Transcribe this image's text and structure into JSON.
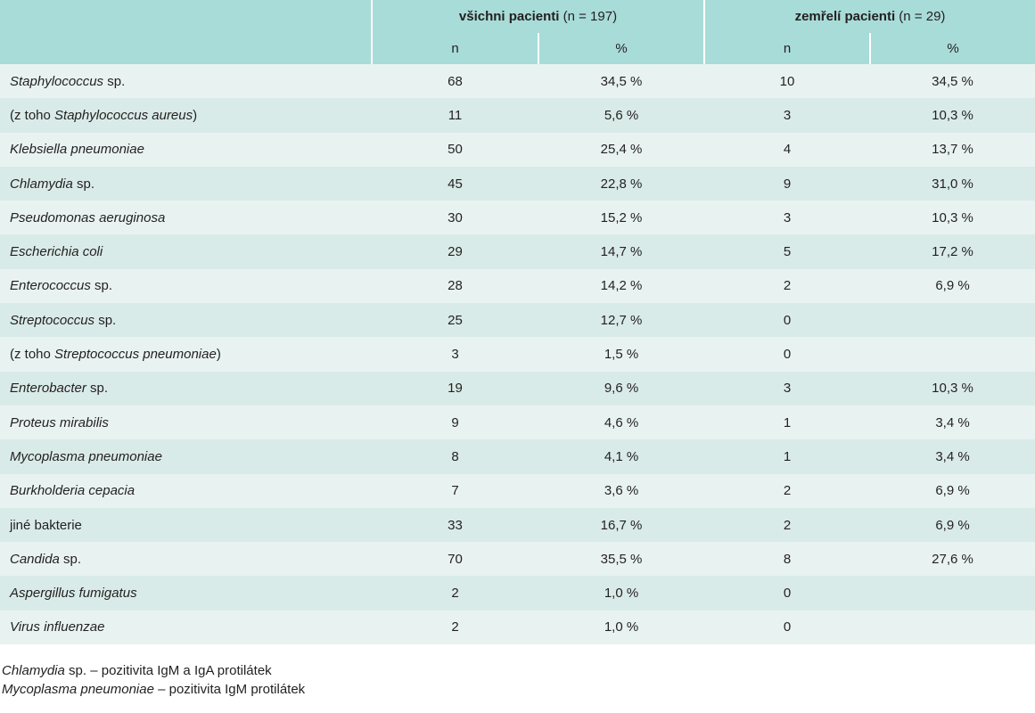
{
  "header": {
    "group1": {
      "label": "všichni pacienti",
      "sub": "(n = 197)"
    },
    "group2": {
      "label": "zemřelí pacienti",
      "sub": "(n = 29)"
    },
    "units": [
      "n",
      "%",
      "n",
      "%"
    ]
  },
  "rows": [
    {
      "pre": "",
      "italic": "Staphylococcus",
      "post": " sp.",
      "n1": "68",
      "p1": "34,5 %",
      "n2": "10",
      "p2": "34,5 %"
    },
    {
      "pre": "(z toho ",
      "italic": "Staphylococcus aureus",
      "post": ")",
      "n1": "11",
      "p1": "5,6 %",
      "n2": "3",
      "p2": "10,3 %"
    },
    {
      "pre": "",
      "italic": "Klebsiella pneumoniae",
      "post": "",
      "n1": "50",
      "p1": "25,4 %",
      "n2": "4",
      "p2": "13,7 %"
    },
    {
      "pre": "",
      "italic": "Chlamydia",
      "post": " sp.",
      "n1": "45",
      "p1": "22,8 %",
      "n2": "9",
      "p2": "31,0 %"
    },
    {
      "pre": "",
      "italic": "Pseudomonas aeruginosa",
      "post": "",
      "n1": "30",
      "p1": "15,2 %",
      "n2": "3",
      "p2": "10,3 %"
    },
    {
      "pre": "",
      "italic": "Escherichia coli",
      "post": "",
      "n1": "29",
      "p1": "14,7 %",
      "n2": "5",
      "p2": "17,2 %"
    },
    {
      "pre": "",
      "italic": "Enterococcus",
      "post": " sp.",
      "n1": "28",
      "p1": "14,2 %",
      "n2": "2",
      "p2": "6,9 %"
    },
    {
      "pre": "",
      "italic": "Streptococcus",
      "post": " sp.",
      "n1": "25",
      "p1": "12,7 %",
      "n2": "0",
      "p2": ""
    },
    {
      "pre": "(z toho ",
      "italic": "Streptococcus pneumoniae",
      "post": ")",
      "n1": "3",
      "p1": "1,5 %",
      "n2": "0",
      "p2": ""
    },
    {
      "pre": "",
      "italic": "Enterobacter",
      "post": " sp.",
      "n1": "19",
      "p1": "9,6 %",
      "n2": "3",
      "p2": "10,3 %"
    },
    {
      "pre": "",
      "italic": "Proteus mirabilis",
      "post": "",
      "n1": "9",
      "p1": "4,6 %",
      "n2": "1",
      "p2": "3,4 %"
    },
    {
      "pre": "",
      "italic": "Mycoplasma pneumoniae",
      "post": "",
      "n1": "8",
      "p1": "4,1 %",
      "n2": "1",
      "p2": "3,4 %"
    },
    {
      "pre": "",
      "italic": "Burkholderia cepacia",
      "post": "",
      "n1": "7",
      "p1": "3,6 %",
      "n2": "2",
      "p2": "6,9 %"
    },
    {
      "pre": "jiné bakterie",
      "italic": "",
      "post": "",
      "n1": "33",
      "p1": "16,7 %",
      "n2": "2",
      "p2": "6,9 %"
    },
    {
      "pre": "",
      "italic": "Candida",
      "post": " sp.",
      "n1": "70",
      "p1": "35,5 %",
      "n2": "8",
      "p2": "27,6 %"
    },
    {
      "pre": "",
      "italic": "Aspergillus fumigatus",
      "post": "",
      "n1": "2",
      "p1": "1,0 %",
      "n2": "0",
      "p2": ""
    },
    {
      "pre": "",
      "italic": "Virus influenzae",
      "post": "",
      "n1": "2",
      "p1": "1,0 %",
      "n2": "0",
      "p2": ""
    }
  ],
  "footnotes": [
    {
      "italic": "Chlamydia",
      "text": " sp. – pozitivita IgM a IgA protilátek"
    },
    {
      "italic": "Mycoplasma pneumoniae",
      "text": " – pozitivita IgM protilátek"
    }
  ]
}
